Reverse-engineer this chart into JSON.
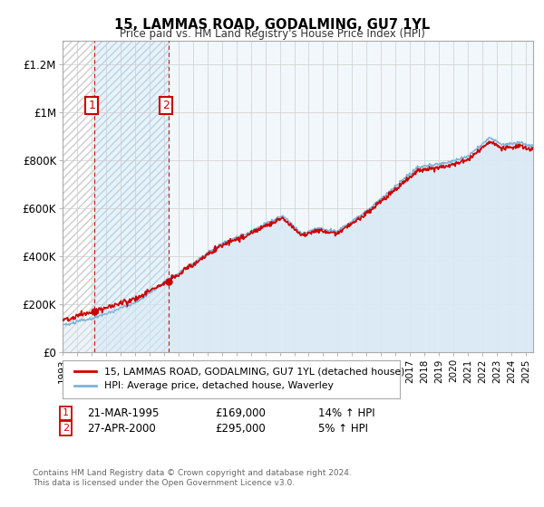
{
  "title": "15, LAMMAS ROAD, GODALMING, GU7 1YL",
  "subtitle": "Price paid vs. HM Land Registry's House Price Index (HPI)",
  "ylim": [
    0,
    1300000
  ],
  "yticks": [
    0,
    200000,
    400000,
    600000,
    800000,
    1000000,
    1200000
  ],
  "ytick_labels": [
    "£0",
    "£200K",
    "£400K",
    "£600K",
    "£800K",
    "£1M",
    "£1.2M"
  ],
  "sale1_date": 1995.22,
  "sale1_price": 169000,
  "sale2_date": 2000.32,
  "sale2_price": 295000,
  "hpi_color": "#7eb3d8",
  "price_color": "#cc0000",
  "hpi_fill_color": "#daeaf5",
  "hatch_color": "#c8c8c8",
  "footer_line1": "Contains HM Land Registry data © Crown copyright and database right 2024.",
  "footer_line2": "This data is licensed under the Open Government Licence v3.0.",
  "legend_label1": "15, LAMMAS ROAD, GODALMING, GU7 1YL (detached house)",
  "legend_label2": "HPI: Average price, detached house, Waverley",
  "table_row1": [
    "1",
    "21-MAR-1995",
    "£169,000",
    "14% ↑ HPI"
  ],
  "table_row2": [
    "2",
    "27-APR-2000",
    "£295,000",
    "5% ↑ HPI"
  ],
  "xstart": 1993,
  "xend": 2025.5
}
